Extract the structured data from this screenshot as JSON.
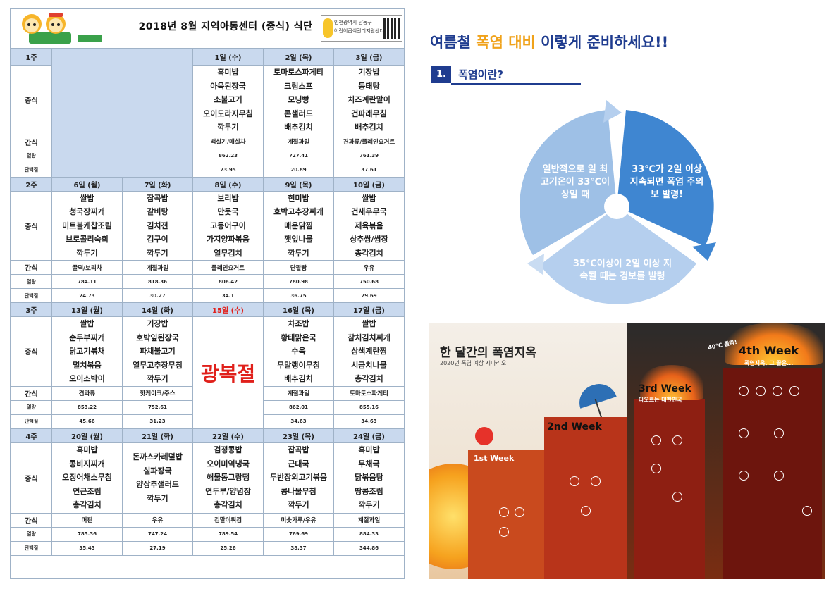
{
  "menu": {
    "title": "2018년 8월  지역아동센터 (중식) 식단",
    "org_line1": "인천광역시 남동구",
    "org_line2": "어린이급식관리지원센터",
    "labels": {
      "lunch": "중식",
      "snack": "간식",
      "energy": "열량",
      "protein": "단백질"
    },
    "week1": {
      "label": "1주",
      "days": [
        "1일 (수)",
        "2일 (목)",
        "3일 (금)"
      ],
      "lunch": [
        [
          "흑미밥",
          "아욱된장국",
          "소불고기",
          "오이도라지무침",
          "깍두기"
        ],
        [
          "토마토스파게티",
          "크림스프",
          "모닝빵",
          "콘샐러드",
          "배추김치"
        ],
        [
          "기장밥",
          "동태탕",
          "치즈계란말이",
          "건파래무침",
          "배추김치"
        ]
      ],
      "snack": [
        "백설기/매실차",
        "계절과일",
        "견과류/플레인요거트"
      ],
      "energy": [
        "862.23",
        "727.41",
        "761.39"
      ],
      "protein": [
        "23.95",
        "20.89",
        "37.61"
      ]
    },
    "week2": {
      "label": "2주",
      "days": [
        "6일 (월)",
        "7일 (화)",
        "8일 (수)",
        "9일 (목)",
        "10일 (금)"
      ],
      "lunch": [
        [
          "쌀밥",
          "청국장찌개",
          "미트볼케찹조림",
          "브로콜리숙회",
          "깍두기"
        ],
        [
          "잡곡밥",
          "갈비탕",
          "김치전",
          "김구이",
          "깍두기"
        ],
        [
          "보리밥",
          "만둣국",
          "고등어구이",
          "가지양파볶음",
          "열무김치"
        ],
        [
          "현미밥",
          "호박고추장찌개",
          "매운닭찜",
          "깻잎나물",
          "깍두기"
        ],
        [
          "쌀밥",
          "건새우무국",
          "제육볶음",
          "상추쌈/쌈장",
          "총각김치"
        ]
      ],
      "snack": [
        "꿀떡/보리차",
        "계절과일",
        "플레인요거트",
        "단팥빵",
        "우유"
      ],
      "energy": [
        "784.11",
        "818.36",
        "806.42",
        "780.98",
        "750.68"
      ],
      "protein": [
        "24.73",
        "30.27",
        "34.1",
        "36.75",
        "29.69"
      ]
    },
    "week3": {
      "label": "3주",
      "days": [
        "13일 (월)",
        "14일 (화)",
        "15일 (수)",
        "16일 (목)",
        "17일 (금)"
      ],
      "holiday": "광복절",
      "lunch": [
        [
          "쌀밥",
          "순두부찌개",
          "닭고기볶채",
          "멸치볶음",
          "오이소박이"
        ],
        [
          "기장밥",
          "호박잎된장국",
          "파채불고기",
          "열무고추장무침",
          "깍두기"
        ],
        [],
        [
          "차조밥",
          "황태맑은국",
          "수육",
          "무말랭이무침",
          "배추김치"
        ],
        [
          "쌀밥",
          "참치김치찌개",
          "삼색계란찜",
          "시금치나물",
          "총각김치"
        ]
      ],
      "snack": [
        "견과류",
        "핫케이크/주스",
        "",
        "계절과일",
        "토마토스파게티"
      ],
      "energy": [
        "853.22",
        "752.61",
        "",
        "862.01",
        "855.16"
      ],
      "protein": [
        "45.66",
        "31.23",
        "",
        "34.63",
        "34.63"
      ]
    },
    "week4": {
      "label": "4주",
      "days": [
        "20일 (월)",
        "21일 (화)",
        "22일 (수)",
        "23일 (목)",
        "24일 (금)"
      ],
      "lunch": [
        [
          "흑미밥",
          "콩비지찌개",
          "오징어채소무침",
          "연근조림",
          "총각김치"
        ],
        [
          "돈까스카레덮밥",
          "실파장국",
          "양상추샐러드",
          "깍두기"
        ],
        [
          "검정콩밥",
          "오이미역냉국",
          "해물동그랑땡",
          "연두부/양념장",
          "총각김치"
        ],
        [
          "잡곡밥",
          "근대국",
          "두반장외고기볶음",
          "콩나물무침",
          "깍두기"
        ],
        [
          "흑미밥",
          "무채국",
          "닭볶음탕",
          "땅콩조림",
          "깍두기"
        ]
      ],
      "snack": [
        "머핀",
        "우유",
        "김말이튀김",
        "미숫가루/우유",
        "계절과일"
      ],
      "energy": [
        "785.36",
        "747.24",
        "789.54",
        "769.69",
        "884.33"
      ],
      "protein": [
        "35.43",
        "27.19",
        "25.26",
        "38.37",
        "344.86"
      ]
    }
  },
  "heatwave": {
    "title_pre": "여름철 ",
    "title_accent1": "폭염",
    "title_mid": " ",
    "title_accent2": "대비",
    "title_post": " 이렇게 준비하세요!!",
    "section_number": "1.",
    "section_title": "폭염이란?",
    "cycle": {
      "seg1": "일반적으로 일 최고기온이 33℃이상일 때",
      "seg2": "33℃가 2일 이상 지속되면 폭염 주의보 발령!",
      "seg3": "35℃이상이 2일 이상 지속될 때는 경보를 발령"
    },
    "colors": {
      "seg1": "#9ec0e6",
      "seg2": "#3f86d1",
      "seg3": "#b5cfee"
    }
  },
  "infographic": {
    "title": "한 달간의 폭염지옥",
    "subtitle": "2020년 폭염 예상 시나리오",
    "weeks": [
      "1st Week",
      "2nd Week",
      "3rd Week",
      "4th Week"
    ],
    "week3_sub": "타오르는 대한민국",
    "week4_sub": "폭염지옥, 그 끝은...",
    "week4_note": "40℃ 돌파!"
  }
}
